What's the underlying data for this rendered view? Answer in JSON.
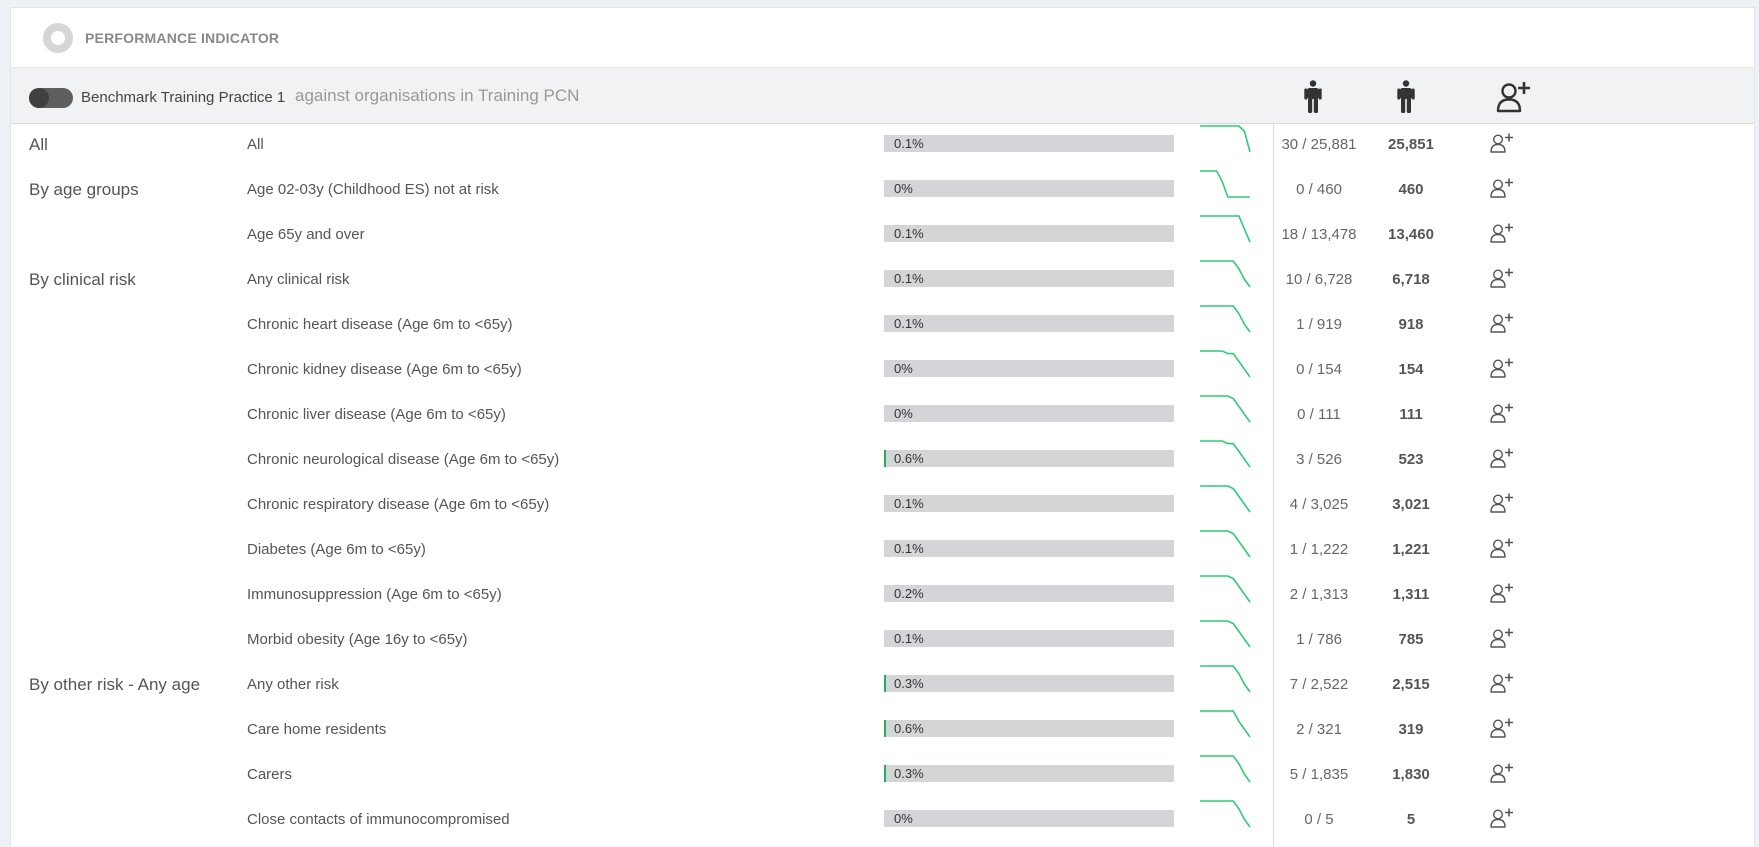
{
  "header": {
    "title": "PERFORMANCE INDICATOR"
  },
  "toolbar": {
    "practice": "Benchmark Training Practice 1",
    "against": "against organisations in Training PCN"
  },
  "colors": {
    "bar_bg": "#d4d5d7",
    "bar_fill": "#27ae60",
    "sparkline": "#2ecc71"
  },
  "icons": {
    "column1": "person-icon",
    "column2": "person-icon",
    "column3": "add-user-icon",
    "row_action": "add-user-icon"
  },
  "rows": [
    {
      "group": "All",
      "label": "All",
      "pct": "0.1%",
      "fill": 0.1,
      "ratio": "30 / 25,881",
      "count": "25,851",
      "spark": [
        0.1,
        0.1,
        0.1,
        0.1,
        0.1,
        0.1,
        0.1,
        0.1,
        0.08,
        0.0
      ]
    },
    {
      "group": "By age groups",
      "label": "Age 02-03y (Childhood ES) not at risk",
      "pct": "0%",
      "fill": 0,
      "ratio": "0 / 460",
      "count": "460",
      "spark": [
        0.1,
        0.1,
        0.1,
        0.1,
        0.06,
        0.0,
        0.0,
        0.0,
        0.0,
        0.0
      ]
    },
    {
      "group": "",
      "label": "Age 65y and over",
      "pct": "0.1%",
      "fill": 0.1,
      "ratio": "18 / 13,478",
      "count": "13,460",
      "spark": [
        0.1,
        0.1,
        0.1,
        0.1,
        0.1,
        0.1,
        0.1,
        0.1,
        0.05,
        0.0
      ]
    },
    {
      "group": "By clinical risk",
      "label": "Any clinical risk",
      "pct": "0.1%",
      "fill": 0.1,
      "ratio": "10 / 6,728",
      "count": "6,718",
      "spark": [
        0.1,
        0.1,
        0.1,
        0.1,
        0.1,
        0.1,
        0.1,
        0.07,
        0.03,
        0.0
      ]
    },
    {
      "group": "",
      "label": "Chronic heart disease (Age 6m to <65y)",
      "pct": "0.1%",
      "fill": 0.1,
      "ratio": "1 / 919",
      "count": "918",
      "spark": [
        0.1,
        0.1,
        0.1,
        0.1,
        0.1,
        0.1,
        0.1,
        0.07,
        0.03,
        0.0
      ]
    },
    {
      "group": "",
      "label": "Chronic kidney disease (Age 6m to <65y)",
      "pct": "0%",
      "fill": 0,
      "ratio": "0 / 154",
      "count": "154",
      "spark": [
        0.1,
        0.1,
        0.1,
        0.1,
        0.1,
        0.09,
        0.09,
        0.06,
        0.03,
        0.0
      ]
    },
    {
      "group": "",
      "label": "Chronic liver disease (Age 6m to <65y)",
      "pct": "0%",
      "fill": 0,
      "ratio": "0 / 111",
      "count": "111",
      "spark": [
        0.1,
        0.1,
        0.1,
        0.1,
        0.1,
        0.1,
        0.09,
        0.06,
        0.03,
        0.0
      ]
    },
    {
      "group": "",
      "label": "Chronic neurological disease (Age 6m to <65y)",
      "pct": "0.6%",
      "fill": 0.6,
      "ratio": "3 / 526",
      "count": "523",
      "spark": [
        0.1,
        0.1,
        0.1,
        0.1,
        0.1,
        0.09,
        0.09,
        0.06,
        0.03,
        0.0
      ]
    },
    {
      "group": "",
      "label": "Chronic respiratory disease (Age 6m to <65y)",
      "pct": "0.1%",
      "fill": 0.1,
      "ratio": "4 / 3,025",
      "count": "3,021",
      "spark": [
        0.1,
        0.1,
        0.1,
        0.1,
        0.1,
        0.1,
        0.09,
        0.06,
        0.03,
        0.0
      ]
    },
    {
      "group": "",
      "label": "Diabetes (Age 6m to <65y)",
      "pct": "0.1%",
      "fill": 0.1,
      "ratio": "1 / 1,222",
      "count": "1,221",
      "spark": [
        0.1,
        0.1,
        0.1,
        0.1,
        0.1,
        0.1,
        0.09,
        0.06,
        0.03,
        0.0
      ]
    },
    {
      "group": "",
      "label": "Immunosuppression (Age 6m to <65y)",
      "pct": "0.2%",
      "fill": 0.2,
      "ratio": "2 / 1,313",
      "count": "1,311",
      "spark": [
        0.1,
        0.1,
        0.1,
        0.1,
        0.1,
        0.1,
        0.09,
        0.06,
        0.03,
        0.0
      ]
    },
    {
      "group": "",
      "label": "Morbid obesity (Age 16y to <65y)",
      "pct": "0.1%",
      "fill": 0.1,
      "ratio": "1 / 786",
      "count": "785",
      "spark": [
        0.1,
        0.1,
        0.1,
        0.1,
        0.1,
        0.1,
        0.09,
        0.06,
        0.03,
        0.0
      ]
    },
    {
      "group": "By other risk - Any age",
      "label": "Any other risk",
      "pct": "0.3%",
      "fill": 0.3,
      "ratio": "7 / 2,522",
      "count": "2,515",
      "spark": [
        0.1,
        0.1,
        0.1,
        0.1,
        0.1,
        0.1,
        0.1,
        0.07,
        0.03,
        0.0
      ]
    },
    {
      "group": "",
      "label": "Care home residents",
      "pct": "0.6%",
      "fill": 0.6,
      "ratio": "2 / 321",
      "count": "319",
      "spark": [
        0.1,
        0.1,
        0.1,
        0.1,
        0.1,
        0.1,
        0.1,
        0.06,
        0.03,
        0.0
      ]
    },
    {
      "group": "",
      "label": "Carers",
      "pct": "0.3%",
      "fill": 0.3,
      "ratio": "5 / 1,835",
      "count": "1,830",
      "spark": [
        0.1,
        0.1,
        0.1,
        0.1,
        0.1,
        0.1,
        0.1,
        0.07,
        0.03,
        0.0
      ]
    },
    {
      "group": "",
      "label": "Close contacts of immunocompromised",
      "pct": "0%",
      "fill": 0,
      "ratio": "0 / 5",
      "count": "5",
      "spark": [
        0.1,
        0.1,
        0.1,
        0.1,
        0.1,
        0.1,
        0.1,
        0.07,
        0.03,
        0.0
      ]
    }
  ]
}
